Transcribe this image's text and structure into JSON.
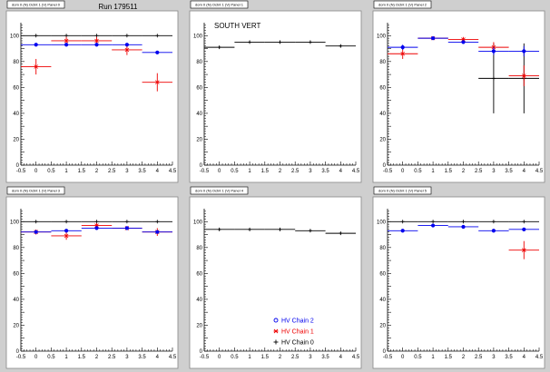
{
  "run_label": "Run 179511",
  "colors": {
    "chain2": "#0000ee",
    "chain1": "#ee0000",
    "chain0": "#000000"
  },
  "legend": [
    {
      "key": "chain2",
      "label": "HV Chain 2",
      "marker": "circle"
    },
    {
      "key": "chain1",
      "label": "HV Chain 1",
      "marker": "star"
    },
    {
      "key": "chain0",
      "label": "HV Chain 0",
      "marker": "plus"
    }
  ],
  "chart_data": [
    {
      "type": "scatter",
      "title": "dom 0 (N) Octnt 1 (V) Panel 0",
      "annotation": "Run 179511",
      "xlim": [
        -0.5,
        4.5
      ],
      "ylim": [
        0,
        110
      ],
      "xticks": [
        "-0.5",
        "0",
        "0.5",
        "1",
        "1.5",
        "2",
        "2.5",
        "3",
        "3.5",
        "4",
        "4.5"
      ],
      "yticks": [
        "0",
        "10",
        "20",
        "30",
        "40",
        "50",
        "60",
        "70",
        "80",
        "90",
        "100"
      ],
      "series": [
        {
          "name": "HV Chain 0",
          "key": "chain0",
          "x": [
            0,
            1,
            2,
            3,
            4
          ],
          "y": [
            100,
            100,
            100,
            100,
            100
          ],
          "yerr": [
            0,
            0,
            0,
            0,
            0
          ]
        },
        {
          "name": "HV Chain 1",
          "key": "chain1",
          "x": [
            0,
            1,
            2,
            3,
            4
          ],
          "y": [
            76,
            96,
            96,
            89,
            64
          ],
          "yerr": [
            6,
            3,
            3,
            4,
            7
          ]
        },
        {
          "name": "HV Chain 2",
          "key": "chain2",
          "x": [
            0,
            1,
            2,
            3,
            4
          ],
          "y": [
            93,
            93,
            93,
            93,
            87
          ],
          "yerr": [
            1,
            1,
            1,
            1,
            1
          ]
        }
      ]
    },
    {
      "type": "scatter",
      "title": "dom 0 (N) Octnt 1 (V) Panel 1",
      "annotation": "SOUTH VERT",
      "xlim": [
        -0.5,
        4.5
      ],
      "ylim": [
        0,
        110
      ],
      "xticks": [
        "-0.5",
        "0",
        "0.5",
        "1",
        "1.5",
        "2",
        "2.5",
        "3",
        "3.5",
        "4",
        "4.5"
      ],
      "yticks": [
        "0",
        "10",
        "20",
        "30",
        "40",
        "50",
        "60",
        "70",
        "80",
        "90",
        "100"
      ],
      "series": [
        {
          "name": "HV Chain 0",
          "key": "chain0",
          "x": [
            0,
            1,
            2,
            3,
            4
          ],
          "y": [
            91,
            95,
            95,
            95,
            92
          ],
          "yerr": [
            1,
            1,
            1,
            1,
            1
          ]
        }
      ]
    },
    {
      "type": "scatter",
      "title": "dom 0 (N) Octnt 1 (V) Panel 2",
      "annotation": "",
      "xlim": [
        -0.5,
        4.5
      ],
      "ylim": [
        0,
        110
      ],
      "xticks": [
        "-0.5",
        "0",
        "0.5",
        "1",
        "1.5",
        "2",
        "2.5",
        "3",
        "3.5",
        "4",
        "4.5"
      ],
      "yticks": [
        "0",
        "10",
        "20",
        "30",
        "40",
        "50",
        "60",
        "70",
        "80",
        "90",
        "100"
      ],
      "series": [
        {
          "name": "HV Chain 0",
          "key": "chain0",
          "x": [
            3,
            4
          ],
          "y": [
            67,
            67
          ],
          "yerr": [
            27,
            27
          ]
        },
        {
          "name": "HV Chain 1",
          "key": "chain1",
          "x": [
            0,
            1,
            2,
            3,
            4
          ],
          "y": [
            86,
            98,
            97,
            91,
            69
          ],
          "yerr": [
            4,
            1,
            2,
            4,
            8
          ]
        },
        {
          "name": "HV Chain 2",
          "key": "chain2",
          "x": [
            0,
            1,
            2,
            3,
            4
          ],
          "y": [
            91,
            98,
            95,
            88,
            88
          ],
          "yerr": [
            2,
            1,
            1,
            3,
            4
          ]
        }
      ]
    },
    {
      "type": "scatter",
      "title": "dom 0 (N) Octnt 1 (V) Panel 3",
      "annotation": "",
      "xlim": [
        -0.5,
        4.5
      ],
      "ylim": [
        0,
        110
      ],
      "xticks": [
        "-0.5",
        "0",
        "0.5",
        "1",
        "1.5",
        "2",
        "2.5",
        "3",
        "3.5",
        "4",
        "4.5"
      ],
      "yticks": [
        "0",
        "10",
        "20",
        "30",
        "40",
        "50",
        "60",
        "70",
        "80",
        "90",
        "100"
      ],
      "series": [
        {
          "name": "HV Chain 0",
          "key": "chain0",
          "x": [
            0,
            1,
            2,
            3,
            4
          ],
          "y": [
            100,
            100,
            100,
            100,
            100
          ],
          "yerr": [
            0,
            0,
            0,
            0,
            0
          ]
        },
        {
          "name": "HV Chain 1",
          "key": "chain1",
          "x": [
            0,
            1,
            2,
            3,
            4
          ],
          "y": [
            92,
            89,
            97,
            95,
            92
          ],
          "yerr": [
            2,
            3,
            2,
            1,
            3
          ]
        },
        {
          "name": "HV Chain 2",
          "key": "chain2",
          "x": [
            0,
            1,
            2,
            3,
            4
          ],
          "y": [
            92,
            93,
            95,
            95,
            92
          ],
          "yerr": [
            1,
            1,
            1,
            1,
            1
          ]
        }
      ]
    },
    {
      "type": "scatter",
      "title": "dom 0 (N) Octnt 1 (V) Panel 4",
      "annotation": "",
      "legend": true,
      "xlim": [
        -0.5,
        4.5
      ],
      "ylim": [
        0,
        110
      ],
      "xticks": [
        "-0.5",
        "0",
        "0.5",
        "1",
        "1.5",
        "2",
        "2.5",
        "3",
        "3.5",
        "4",
        "4.5"
      ],
      "yticks": [
        "0",
        "10",
        "20",
        "30",
        "40",
        "50",
        "60",
        "70",
        "80",
        "90",
        "100"
      ],
      "series": [
        {
          "name": "HV Chain 0",
          "key": "chain0",
          "x": [
            0,
            1,
            2,
            3,
            4
          ],
          "y": [
            94,
            94,
            94,
            93,
            91
          ],
          "yerr": [
            1,
            1,
            1,
            1,
            1
          ]
        }
      ]
    },
    {
      "type": "scatter",
      "title": "dom 0 (N) Octnt 1 (V) Panel 5",
      "annotation": "",
      "xlim": [
        -0.5,
        4.5
      ],
      "ylim": [
        0,
        110
      ],
      "xticks": [
        "-0.5",
        "0",
        "0.5",
        "1",
        "1.5",
        "2",
        "2.5",
        "3",
        "3.5",
        "4",
        "4.5"
      ],
      "yticks": [
        "0",
        "10",
        "20",
        "30",
        "40",
        "50",
        "60",
        "70",
        "80",
        "90",
        "100"
      ],
      "series": [
        {
          "name": "HV Chain 0",
          "key": "chain0",
          "x": [
            0,
            1,
            2,
            3,
            4
          ],
          "y": [
            100,
            100,
            100,
            100,
            100
          ],
          "yerr": [
            0,
            0,
            0,
            0,
            0
          ]
        },
        {
          "name": "HV Chain 1",
          "key": "chain1",
          "x": [
            4
          ],
          "y": [
            78
          ],
          "yerr": [
            7
          ]
        },
        {
          "name": "HV Chain 2",
          "key": "chain2",
          "x": [
            0,
            1,
            2,
            3,
            4
          ],
          "y": [
            93,
            97,
            96,
            93,
            94
          ],
          "yerr": [
            1,
            1,
            1,
            1,
            1
          ]
        }
      ]
    }
  ]
}
